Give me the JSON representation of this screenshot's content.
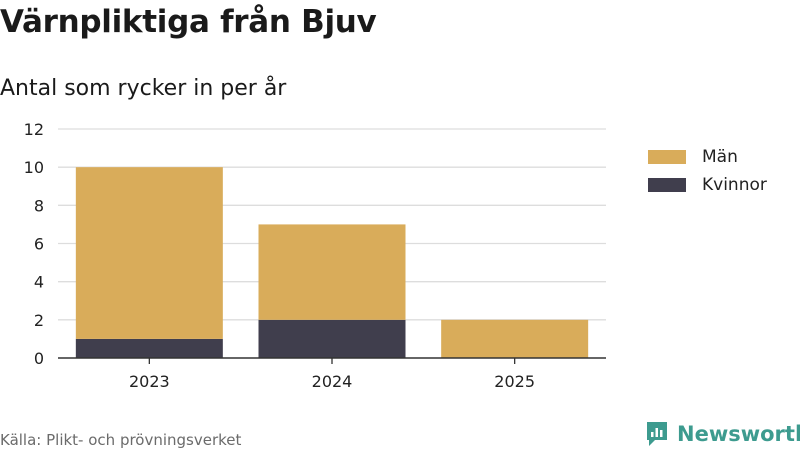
{
  "header": {
    "title": "Värnpliktiga från Bjuv",
    "subtitle": "Antal som rycker in per år"
  },
  "footer": {
    "source": "Källa: Plikt- och prövningsverket",
    "brand": "Newsworthy"
  },
  "colors": {
    "man": "#d9ac5a",
    "kvinnor": "#403e4d",
    "grid": "#dddddd",
    "axis": "#333333",
    "brand": "#3d9b8f"
  },
  "chart_data": {
    "type": "bar",
    "stacked": true,
    "title": "Värnpliktiga från Bjuv",
    "subtitle": "Antal som rycker in per år",
    "categories": [
      "2023",
      "2024",
      "2025"
    ],
    "series": [
      {
        "name": "Kvinnor",
        "values": [
          1,
          2,
          0
        ]
      },
      {
        "name": "Män",
        "values": [
          9,
          5,
          2
        ]
      }
    ],
    "legend_order": [
      "Män",
      "Kvinnor"
    ],
    "ylim": [
      0,
      12
    ],
    "yticks": [
      0,
      2,
      4,
      6,
      8,
      10,
      12
    ],
    "grid": true,
    "legend_position": "right"
  }
}
